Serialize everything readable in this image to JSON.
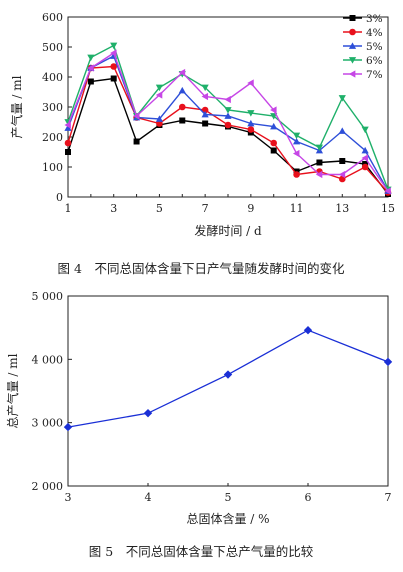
{
  "chart_data": [
    {
      "type": "line",
      "caption": "图 4　不同总固体含量下日产气量随发酵时间的变化",
      "xlabel": "发酵时间 / d",
      "ylabel": "产气量 / ml",
      "x": [
        1,
        2,
        3,
        4,
        5,
        6,
        7,
        8,
        9,
        10,
        11,
        12,
        13,
        14,
        15
      ],
      "xticks": [
        1,
        3,
        5,
        7,
        9,
        11,
        13,
        15
      ],
      "yticks": [
        0,
        100,
        200,
        300,
        400,
        500,
        600
      ],
      "xlim": [
        1,
        15
      ],
      "ylim": [
        0,
        600
      ],
      "legend_position": "top-right",
      "series": [
        {
          "name": "3%",
          "color": "#000000",
          "marker": "square",
          "values": [
            150,
            385,
            395,
            185,
            240,
            255,
            245,
            235,
            215,
            155,
            85,
            115,
            120,
            110,
            10
          ]
        },
        {
          "name": "4%",
          "color": "#e8101c",
          "marker": "circle",
          "values": [
            180,
            430,
            435,
            265,
            245,
            300,
            290,
            240,
            225,
            180,
            75,
            85,
            60,
            100,
            15
          ]
        },
        {
          "name": "5%",
          "color": "#2e4fd8",
          "marker": "triangle-up",
          "values": [
            230,
            430,
            470,
            265,
            260,
            355,
            275,
            270,
            245,
            235,
            185,
            155,
            220,
            155,
            20
          ]
        },
        {
          "name": "6%",
          "color": "#1fb06a",
          "marker": "triangle-down",
          "values": [
            250,
            465,
            505,
            270,
            365,
            410,
            365,
            290,
            280,
            270,
            205,
            165,
            330,
            225,
            25
          ]
        },
        {
          "name": "7%",
          "color": "#c646e6",
          "marker": "triangle-left",
          "values": [
            240,
            430,
            480,
            270,
            340,
            415,
            335,
            325,
            380,
            290,
            145,
            75,
            75,
            130,
            20
          ]
        }
      ]
    },
    {
      "type": "line",
      "caption": "图 5　不同总固体含量下总产气量的比较",
      "xlabel": "总固体含量 / %",
      "ylabel": "总产气量 / ml",
      "x": [
        3,
        4,
        5,
        6,
        7
      ],
      "xticks": [
        3,
        4,
        5,
        6,
        7
      ],
      "yticks": [
        2000,
        3000,
        4000,
        5000
      ],
      "ytick_labels": [
        "2 000",
        "3 000",
        "4 000",
        "5 000"
      ],
      "xlim": [
        3,
        7
      ],
      "ylim": [
        2000,
        5000
      ],
      "series": [
        {
          "color": "#1a2fd6",
          "marker": "diamond",
          "values": [
            2930,
            3150,
            3760,
            4460,
            3960
          ]
        }
      ]
    }
  ]
}
